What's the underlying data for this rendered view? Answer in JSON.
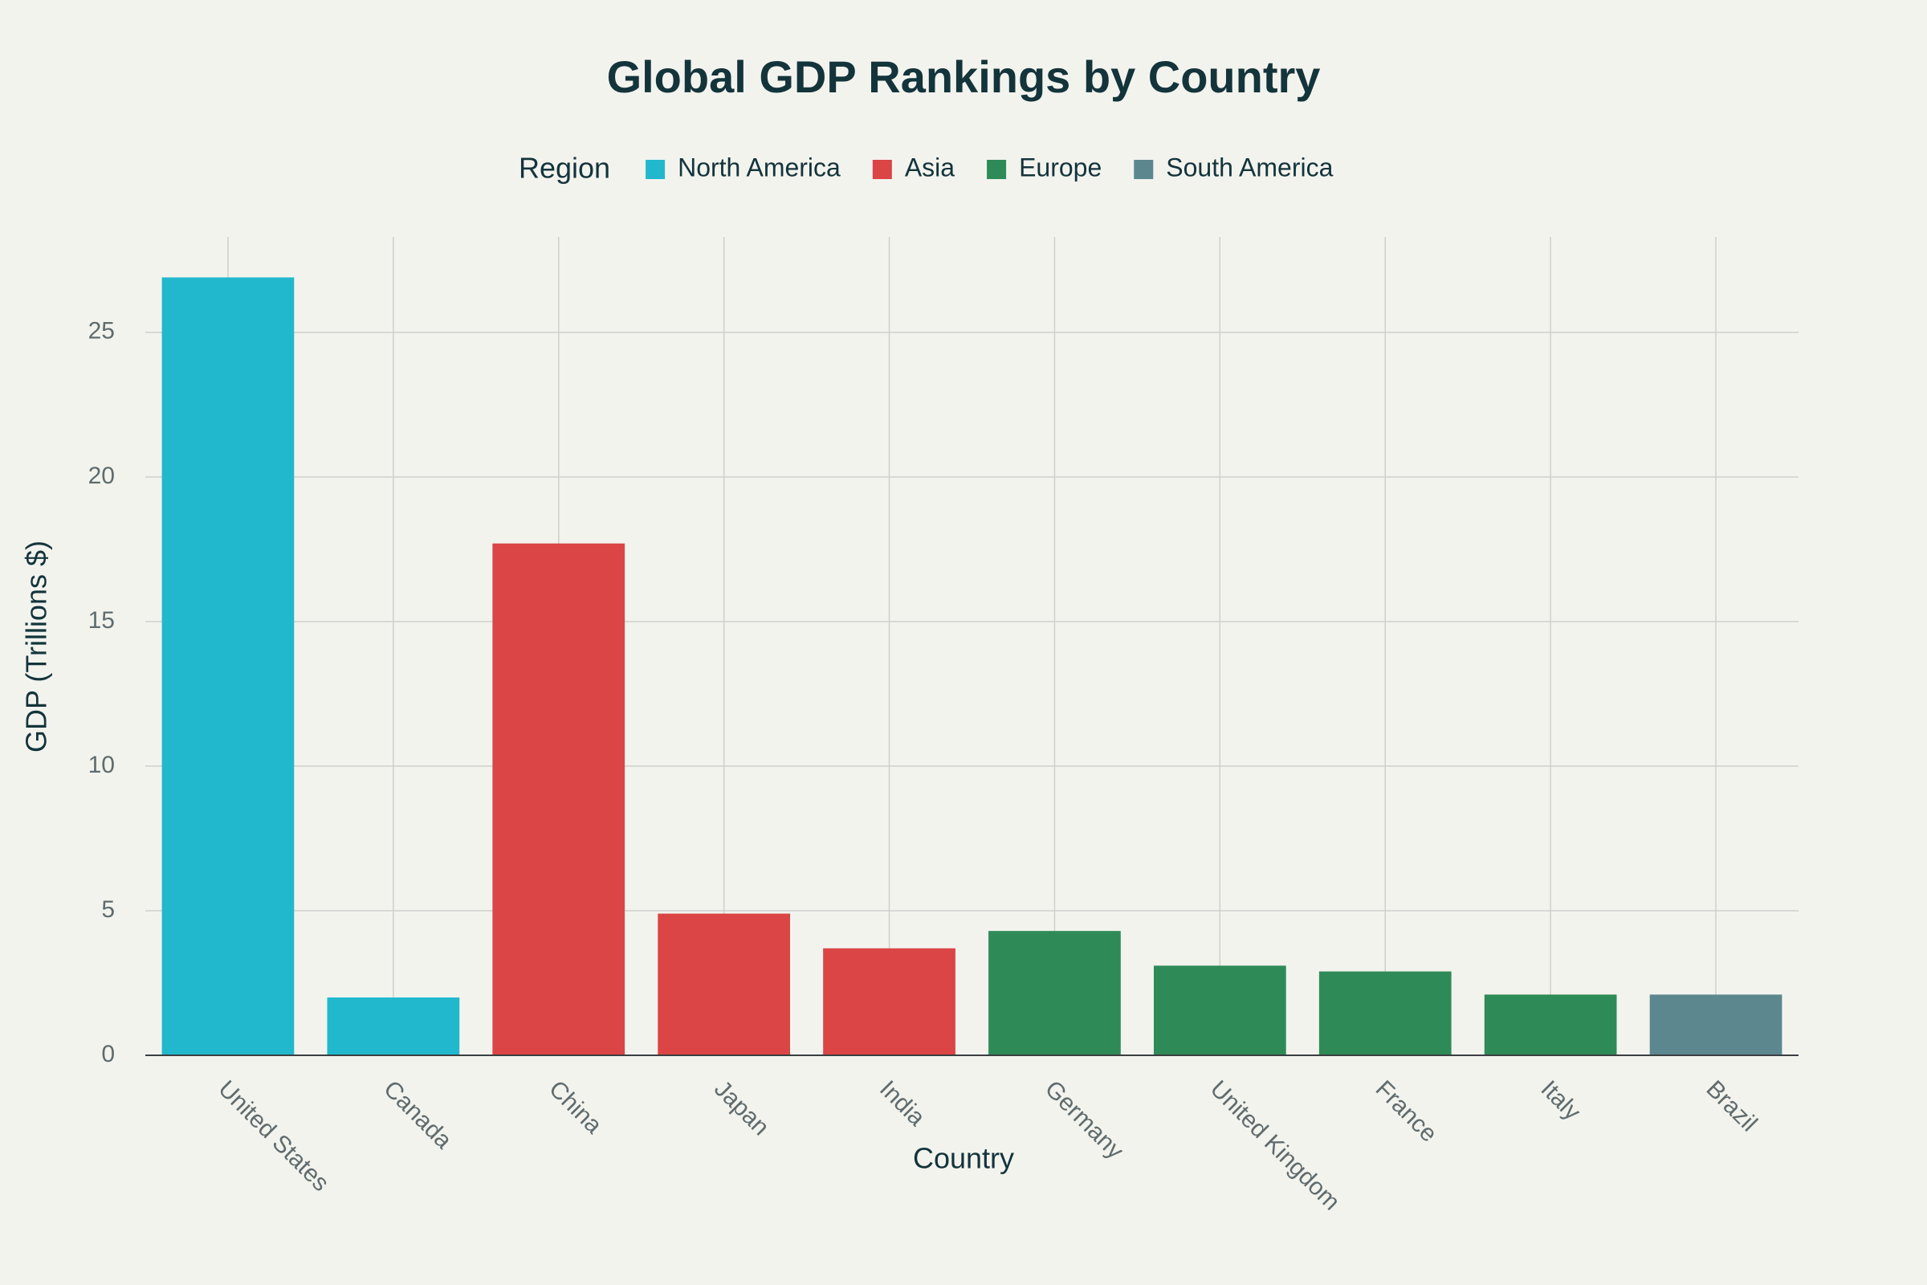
{
  "chart_data": {
    "type": "bar",
    "title": "Global GDP Rankings by Country",
    "xlabel": "Country",
    "ylabel": "GDP (Trillions $)",
    "legend_title": "Region",
    "categories": [
      "United States",
      "Canada",
      "China",
      "Japan",
      "India",
      "Germany",
      "United Kingdom",
      "France",
      "Italy",
      "Brazil"
    ],
    "series": [
      {
        "name": "North America",
        "color": "#21b8cd",
        "values": [
          26.9,
          2.0,
          null,
          null,
          null,
          null,
          null,
          null,
          null,
          null
        ]
      },
      {
        "name": "Asia",
        "color": "#db4545",
        "values": [
          null,
          null,
          17.7,
          4.9,
          3.7,
          null,
          null,
          null,
          null,
          null
        ]
      },
      {
        "name": "Europe",
        "color": "#2e8b57",
        "values": [
          null,
          null,
          null,
          null,
          null,
          4.3,
          3.1,
          2.9,
          2.1,
          null
        ]
      },
      {
        "name": "South America",
        "color": "#5d878f",
        "values": [
          null,
          null,
          null,
          null,
          null,
          null,
          null,
          null,
          null,
          2.1
        ]
      }
    ],
    "ylim": [
      0,
      28.3
    ],
    "yticks": [
      0,
      5,
      10,
      15,
      20,
      25
    ],
    "grid": true
  }
}
